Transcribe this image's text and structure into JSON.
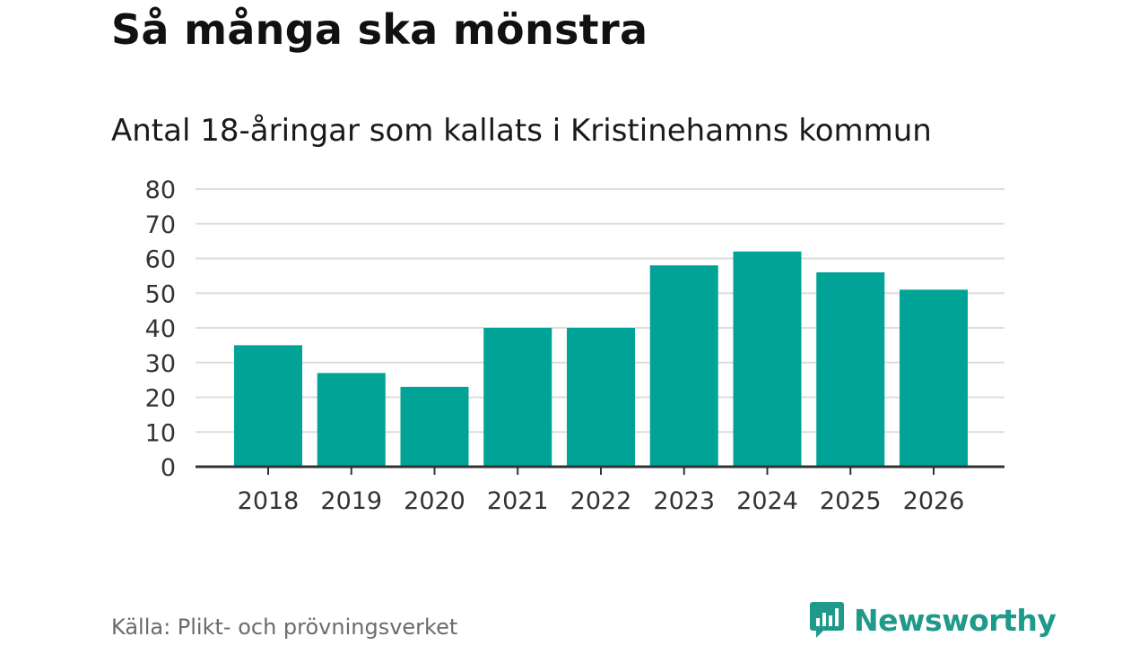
{
  "header": {
    "title": "Så många ska mönstra",
    "subtitle": "Antal 18-åringar som kallats i Kristinehamns kommun"
  },
  "footer": {
    "source": "Källa: Plikt- och prövningsverket",
    "brand": "Newsworthy",
    "brand_icon": "bar-chart-speech-bubble-icon"
  },
  "colors": {
    "bar": "#00a396",
    "grid": "#dddddd",
    "axis": "#333333",
    "brand": "#1f9a8a"
  },
  "chart_data": {
    "type": "bar",
    "categories": [
      "2018",
      "2019",
      "2020",
      "2021",
      "2022",
      "2023",
      "2024",
      "2025",
      "2026"
    ],
    "values": [
      35,
      27,
      23,
      40,
      40,
      58,
      62,
      56,
      51
    ],
    "title": "Så många ska mönstra",
    "subtitle": "Antal 18-åringar som kallats i Kristinehamns kommun",
    "xlabel": "",
    "ylabel": "",
    "ylim": [
      0,
      80
    ],
    "yticks": [
      0,
      10,
      20,
      30,
      40,
      50,
      60,
      70,
      80
    ],
    "grid": true,
    "legend": "none"
  }
}
